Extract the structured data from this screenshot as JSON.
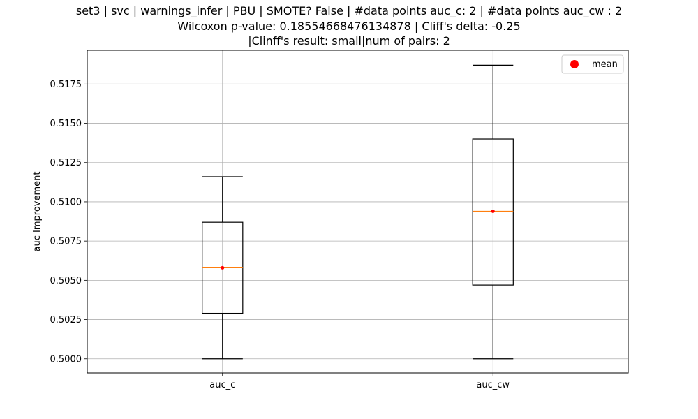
{
  "chart_data": {
    "type": "box",
    "title_lines": [
      "set3 | svc | warnings_infer | PBU | SMOTE? False | #data points auc_c: 2 | #data points auc_cw : 2",
      "Wilcoxon p-value: 0.18554668476134878 | Cliff's delta: -0.25",
      "|Clinff's result: small|num of pairs: 2"
    ],
    "ylabel": "auc Improvement",
    "xlabel": "",
    "ylim": [
      0.4991,
      0.51965
    ],
    "yticks": [
      0.5,
      0.5025,
      0.505,
      0.5075,
      0.51,
      0.5125,
      0.515,
      0.5175
    ],
    "ytick_labels": [
      "0.5000",
      "0.5025",
      "0.5050",
      "0.5075",
      "0.5100",
      "0.5125",
      "0.5150",
      "0.5175"
    ],
    "categories": [
      "auc_c",
      "auc_cw"
    ],
    "boxes": [
      {
        "whisker_low": 0.5,
        "q1": 0.5029,
        "median": 0.5058,
        "q3": 0.5087,
        "whisker_high": 0.5116,
        "mean": 0.5058
      },
      {
        "whisker_low": 0.5,
        "q1": 0.5047,
        "median": 0.5094,
        "q3": 0.514,
        "whisker_high": 0.5187,
        "mean": 0.5094
      }
    ],
    "legend": {
      "label": "mean",
      "position": "top-right",
      "marker_color": "#ff0000"
    },
    "grid": true,
    "colors": {
      "box": "#000000",
      "median": "#ff7f0e",
      "mean": "#ff0000",
      "grid": "#b0b0b0"
    }
  }
}
